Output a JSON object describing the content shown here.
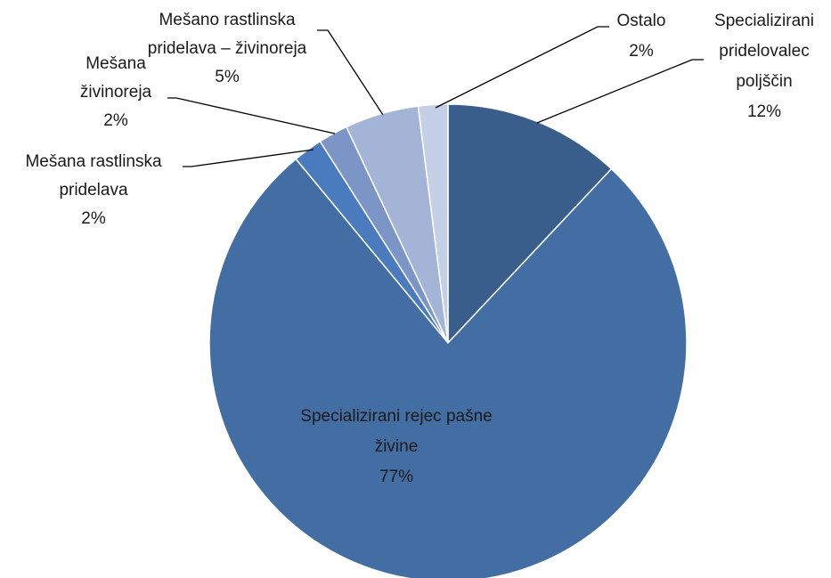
{
  "chart_data": {
    "type": "pie",
    "categories": [
      "Specializirani pridelovalec poljščin",
      "Specializirani rejec pašne živine",
      "Mešana rastlinska pridelava",
      "Mešana živinoreja",
      "Mešano rastlinska pridelava – živinoreja",
      "Ostalo"
    ],
    "values": [
      12,
      77,
      2,
      2,
      5,
      2
    ],
    "value_labels": [
      "12%",
      "77%",
      "2%",
      "2%",
      "5%",
      "2%"
    ],
    "colors": [
      "#3a5e8c",
      "#436ea3",
      "#4a7bbf",
      "#7b95c7",
      "#a3b4d6",
      "#c5cfe6"
    ]
  }
}
